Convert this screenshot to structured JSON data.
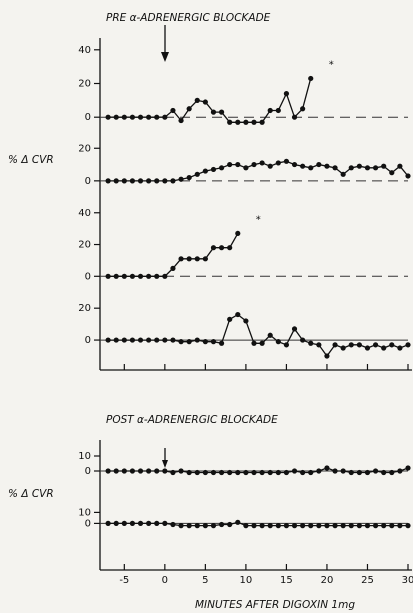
{
  "chart_data": [
    {
      "type": "line",
      "title": "PRE α-ADRENERGIC BLOCKADE",
      "color": "#111111",
      "baseline": "dashed",
      "annotation": "*",
      "xlim": [
        -8,
        30
      ],
      "ylim": [
        -7,
        47
      ],
      "yticks": [
        0,
        20,
        40
      ],
      "x": [
        -7,
        -6,
        -5,
        -4,
        -3,
        -2,
        -1,
        0,
        1,
        2,
        3,
        4,
        5,
        6,
        7,
        8,
        9,
        10,
        11,
        12,
        13,
        14,
        15,
        16,
        17,
        18
      ],
      "values": [
        0,
        0,
        0,
        0,
        0,
        0,
        0,
        0,
        4,
        -2,
        5,
        10,
        9,
        3,
        3,
        -3,
        -3,
        -3,
        -3,
        -3,
        4,
        4,
        14,
        0,
        5,
        23
      ]
    },
    {
      "type": "line",
      "ylabel": "% Δ CVR",
      "color": "#111111",
      "baseline": "dashed",
      "xlim": [
        -8,
        30
      ],
      "ylim": [
        -5,
        22
      ],
      "yticks": [
        0,
        20
      ],
      "x": [
        -7,
        -6,
        -5,
        -4,
        -3,
        -2,
        -1,
        0,
        1,
        2,
        3,
        4,
        5,
        6,
        7,
        8,
        9,
        10,
        11,
        12,
        13,
        14,
        15,
        16,
        17,
        18,
        19,
        20,
        21,
        22,
        23,
        24,
        25,
        26,
        27,
        28,
        29,
        30
      ],
      "values": [
        0,
        0,
        0,
        0,
        0,
        0,
        0,
        0,
        0,
        1,
        2,
        4,
        6,
        7,
        8,
        10,
        10,
        8,
        10,
        11,
        9,
        11,
        12,
        10,
        9,
        8,
        10,
        9,
        8,
        4,
        8,
        9,
        8,
        8,
        9,
        5,
        9,
        3
      ]
    },
    {
      "type": "line",
      "color": "#111111",
      "baseline": "dashed",
      "annotation": "*",
      "xlim": [
        -8,
        30
      ],
      "ylim": [
        -8,
        43
      ],
      "yticks": [
        0,
        20,
        40
      ],
      "x": [
        -7,
        -6,
        -5,
        -4,
        -3,
        -2,
        -1,
        0,
        1,
        2,
        3,
        4,
        5,
        6,
        7,
        8,
        9
      ],
      "values": [
        0,
        0,
        0,
        0,
        0,
        0,
        0,
        0,
        5,
        11,
        11,
        11,
        11,
        18,
        18,
        18,
        27
      ]
    },
    {
      "type": "line",
      "color": "#111111",
      "baseline": "solid",
      "xlim": [
        -8,
        30
      ],
      "ylim": [
        -10,
        22
      ],
      "yticks": [
        0,
        20
      ],
      "x": [
        -7,
        -6,
        -5,
        -4,
        -3,
        -2,
        -1,
        0,
        1,
        2,
        3,
        4,
        5,
        6,
        7,
        8,
        9,
        10,
        11,
        12,
        13,
        14,
        15,
        16,
        17,
        18,
        19,
        20,
        21,
        22,
        23,
        24,
        25,
        26,
        27,
        28,
        29,
        30
      ],
      "values": [
        0,
        0,
        0,
        0,
        0,
        0,
        0,
        0,
        0,
        -1,
        -1,
        0,
        -1,
        -1,
        -2,
        13,
        16,
        12,
        -2,
        -2,
        3,
        -1,
        -3,
        7,
        0,
        -2,
        -3,
        -10,
        -3,
        -5,
        -3,
        -3,
        -5,
        -3,
        -5,
        -3,
        -5,
        -3
      ]
    },
    {
      "type": "line",
      "title": "POST α-ADRENERGIC BLOCKADE",
      "ylabel": "% Δ CVR",
      "color": "#111111",
      "baseline": "solid",
      "xlim": [
        -8,
        30
      ],
      "ylim": [
        -6,
        14
      ],
      "yticks": [
        0,
        10
      ],
      "x": [
        -7,
        -6,
        -5,
        -4,
        -3,
        -2,
        -1,
        0,
        1,
        2,
        3,
        4,
        5,
        6,
        7,
        8,
        9,
        10,
        11,
        12,
        13,
        14,
        15,
        16,
        17,
        18,
        19,
        20,
        21,
        22,
        23,
        24,
        25,
        26,
        27,
        28,
        29,
        30
      ],
      "values": [
        0,
        0,
        0,
        0,
        0,
        0,
        0,
        0,
        -1,
        0,
        -1,
        -1,
        -1,
        -1,
        -1,
        -1,
        -1,
        -1,
        -1,
        -1,
        -1,
        -1,
        -1,
        0,
        -1,
        -1,
        0,
        2,
        0,
        0,
        -1,
        -1,
        -1,
        0,
        -1,
        -1,
        0,
        2
      ]
    },
    {
      "type": "line",
      "color": "#111111",
      "baseline": "solid",
      "xlim": [
        -8,
        30
      ],
      "ylim": [
        -6,
        14
      ],
      "yticks": [
        0,
        10
      ],
      "xticks": [
        -5,
        0,
        5,
        10,
        15,
        20,
        25,
        30
      ],
      "xlabel": "MINUTES AFTER DIGOXIN 1mg",
      "x": [
        -7,
        -6,
        -5,
        -4,
        -3,
        -2,
        -1,
        0,
        1,
        2,
        3,
        4,
        5,
        6,
        7,
        8,
        9,
        10,
        11,
        12,
        13,
        14,
        15,
        16,
        17,
        18,
        19,
        20,
        21,
        22,
        23,
        24,
        25,
        26,
        27,
        28,
        29,
        30
      ],
      "values": [
        0,
        0,
        0,
        0,
        0,
        0,
        0,
        0,
        -1,
        -2,
        -2,
        -2,
        -2,
        -2,
        -1,
        -1,
        1,
        -2,
        -2,
        -2,
        -2,
        -2,
        -2,
        -2,
        -2,
        -2,
        -2,
        -2,
        -2,
        -2,
        -2,
        -2,
        -2,
        -2,
        -2,
        -2,
        -2,
        -2
      ]
    }
  ]
}
